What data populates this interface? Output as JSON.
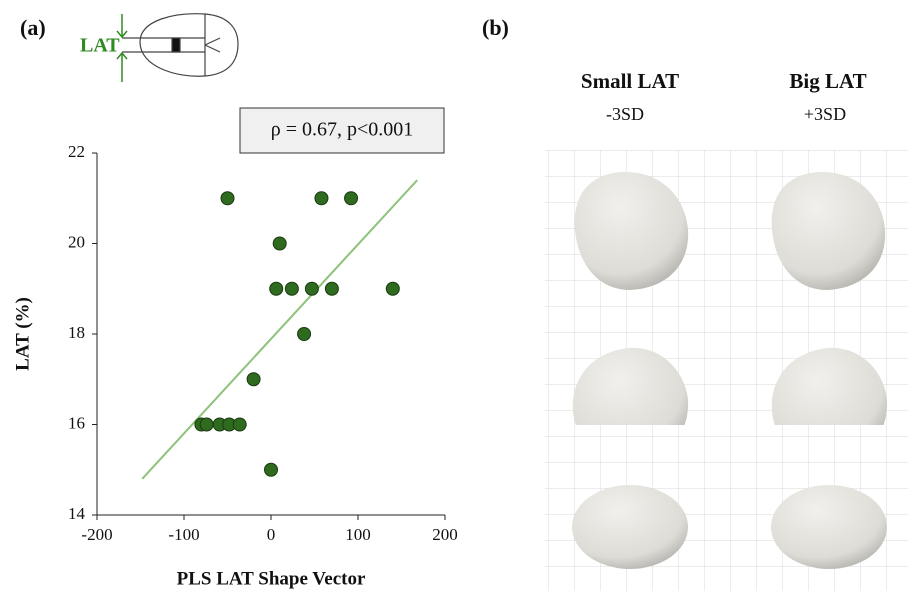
{
  "chart_data": {
    "type": "scatter",
    "xlabel": "PLS LAT Shape Vector",
    "ylabel": "LAT (%)",
    "annotation": "ρ = 0.67, p<0.001",
    "x": [
      -50,
      58,
      92,
      10,
      6,
      24,
      47,
      70,
      140,
      38,
      -20,
      -80,
      -74,
      -59,
      -48,
      -36,
      0
    ],
    "y": [
      21,
      21,
      21,
      20,
      19,
      19,
      19,
      19,
      19,
      18,
      17,
      16,
      16,
      16,
      16,
      16,
      15
    ],
    "color": "#2e6b1f",
    "trend": {
      "x": [
        -148,
        168
      ],
      "y": [
        14.8,
        21.4
      ],
      "color": "#8cc27a"
    },
    "xlim": [
      -200,
      200
    ],
    "ylim": [
      14,
      22
    ],
    "xticks": [
      -200,
      -100,
      0,
      100,
      200
    ],
    "yticks": [
      14,
      16,
      18,
      20,
      22
    ],
    "grid": false
  },
  "panel_a": "(a)",
  "panel_b": "(b)",
  "diagram_label": "LAT",
  "columns": [
    {
      "title": "Small LAT",
      "subtitle": "-3SD"
    },
    {
      "title": "Big LAT",
      "subtitle": "+3SD"
    }
  ]
}
